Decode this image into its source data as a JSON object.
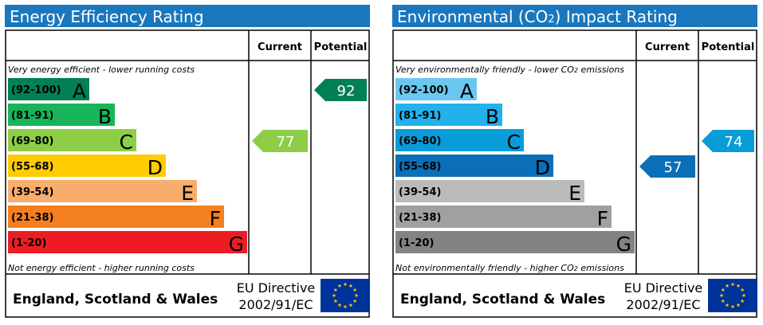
{
  "chart_data": [
    {
      "type": "bar",
      "title": "Energy Efficiency Rating",
      "header": {
        "current": "Current",
        "potential": "Potential"
      },
      "top_note": "Very energy efficient - lower running costs",
      "bottom_note": "Not energy efficient - higher running costs",
      "bands": [
        {
          "range": "(92-100)",
          "letter": "A",
          "color": "#008054"
        },
        {
          "range": "(81-91)",
          "letter": "B",
          "color": "#19b459"
        },
        {
          "range": "(69-80)",
          "letter": "C",
          "color": "#8dce46"
        },
        {
          "range": "(55-68)",
          "letter": "D",
          "color": "#ffcc00"
        },
        {
          "range": "(39-54)",
          "letter": "E",
          "color": "#f8ad6c"
        },
        {
          "range": "(21-38)",
          "letter": "F",
          "color": "#f47f20"
        },
        {
          "range": "(1-20)",
          "letter": "G",
          "color": "#ed1c24"
        }
      ],
      "current": {
        "value": 77,
        "band": "C",
        "color": "#8dce46"
      },
      "potential": {
        "value": 92,
        "band": "A",
        "color": "#008054"
      },
      "footer": {
        "region": "England, Scotland & Wales",
        "directive_line1": "EU Directive",
        "directive_line2": "2002/91/EC"
      }
    },
    {
      "type": "bar",
      "title_prefix": "Environmental (CO",
      "title_sub": "2",
      "title_suffix": ") Impact Rating",
      "header": {
        "current": "Current",
        "potential": "Potential"
      },
      "top_note": "Very environmentally friendly - lower CO",
      "top_note_sub": "2",
      "top_note_suffix": " emissions",
      "bottom_note": "Not environmentally friendly - higher CO",
      "bottom_note_sub": "2",
      "bottom_note_suffix": " emissions",
      "bands": [
        {
          "range": "(92-100)",
          "letter": "A",
          "color": "#6ac8ef"
        },
        {
          "range": "(81-91)",
          "letter": "B",
          "color": "#22b1eb"
        },
        {
          "range": "(69-80)",
          "letter": "C",
          "color": "#089cd8"
        },
        {
          "range": "(55-68)",
          "letter": "D",
          "color": "#0b6fb8"
        },
        {
          "range": "(39-54)",
          "letter": "E",
          "color": "#bbbbbb"
        },
        {
          "range": "(21-38)",
          "letter": "F",
          "color": "#a0a0a0"
        },
        {
          "range": "(1-20)",
          "letter": "G",
          "color": "#838383"
        }
      ],
      "current": {
        "value": 57,
        "band": "D",
        "color": "#0b6fb8"
      },
      "potential": {
        "value": 74,
        "band": "C",
        "color": "#089cd8"
      },
      "footer": {
        "region": "England, Scotland & Wales",
        "directive_line1": "EU Directive",
        "directive_line2": "2002/91/EC"
      }
    }
  ],
  "colors": {
    "title_bar": "#1a77bd",
    "border": "#000000",
    "eu_flag": "#003399",
    "eu_star": "#ffcc00"
  },
  "icons": {
    "eu_flag": "eu-flag-icon"
  }
}
